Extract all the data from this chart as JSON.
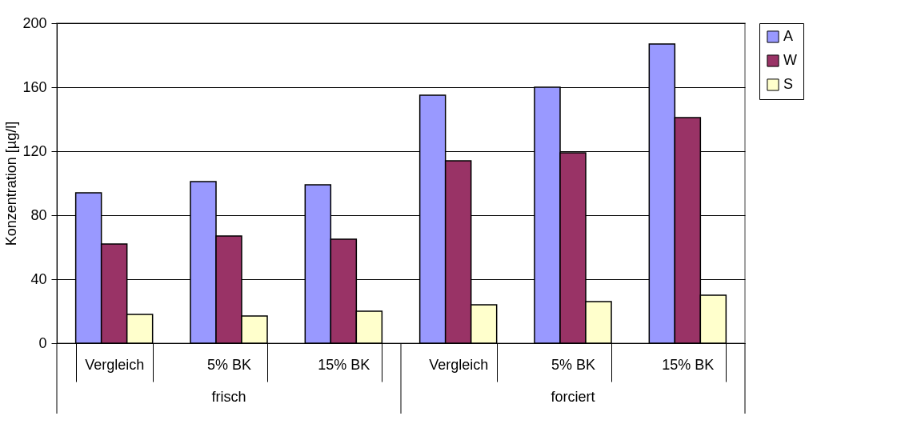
{
  "chart_data": {
    "type": "bar",
    "ylabel": "Konzentration [µg/l]",
    "categories": [
      "Vergleich",
      "5% BK",
      "15% BK",
      "Vergleich",
      "5% BK",
      "15% BK"
    ],
    "series": [
      {
        "name": "A",
        "color": "#9999ff",
        "values": [
          94,
          101,
          99,
          155,
          160,
          187
        ]
      },
      {
        "name": "W",
        "color": "#993366",
        "values": [
          62,
          67,
          65,
          114,
          119,
          141
        ]
      },
      {
        "name": "S",
        "color": "#ffffcc",
        "values": [
          18,
          17,
          20,
          24,
          26,
          30
        ]
      }
    ],
    "annotations": [
      "frisch",
      "forciert"
    ],
    "ylim": [
      0,
      200
    ],
    "yticks": [
      0,
      40,
      80,
      120,
      160,
      200
    ],
    "grid": "y",
    "legend": "right"
  }
}
